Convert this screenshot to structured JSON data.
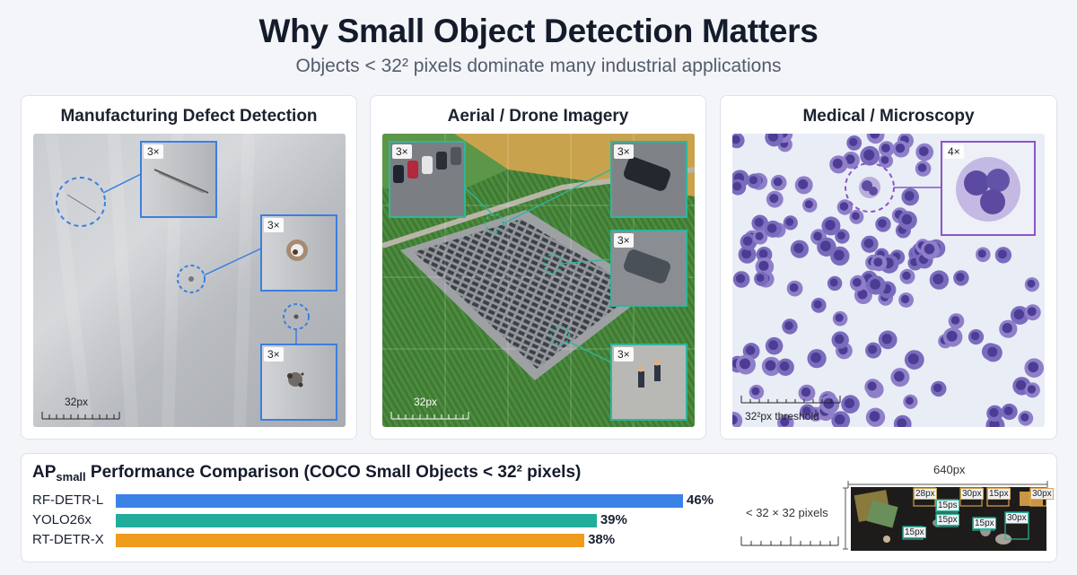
{
  "header": {
    "title": "Why Small Object Detection Matters",
    "subtitle": "Objects < 32² pixels dominate many industrial applications"
  },
  "panels": [
    {
      "title": "Manufacturing Defect Detection",
      "zoom_labels": [
        "3×",
        "3×",
        "3×"
      ],
      "scale_label": "32px"
    },
    {
      "title": "Aerial / Drone Imagery",
      "zoom_labels": [
        "3×",
        "3×",
        "3×",
        "3×"
      ],
      "scale_label": "32px"
    },
    {
      "title": "Medical / Microscopy",
      "zoom_labels": [
        "4×"
      ],
      "scale_label": "32²px threshold"
    }
  ],
  "performance": {
    "title_prefix": "AP",
    "title_sub": "small",
    "title_rest": " Performance Comparison (COCO Small Objects < 32² pixels)"
  },
  "chart_data": {
    "type": "bar",
    "orientation": "horizontal",
    "categories": [
      "RF-DETR-L",
      "YOLO26x",
      "RT-DETR-X"
    ],
    "values": [
      46,
      39,
      38
    ],
    "value_labels": [
      "46%",
      "39%",
      "38%"
    ],
    "colors": [
      "#3b82e6",
      "#22ad9b",
      "#ef9b1c"
    ],
    "xlim": [
      0,
      46
    ],
    "title": "APsmall Performance Comparison (COCO Small Objects < 32² pixels)"
  },
  "thumbnail": {
    "width_label": "640px",
    "size_note": "< 32 × 32 pixels",
    "box_labels": [
      "28px",
      "30px",
      "15px",
      "30px",
      "15ps",
      "15px",
      "15px",
      "30px",
      "15px"
    ]
  },
  "colors": {
    "accent_blue": "#3b7fe0",
    "accent_teal": "#2fb59c",
    "accent_purple": "#8b55c8"
  }
}
